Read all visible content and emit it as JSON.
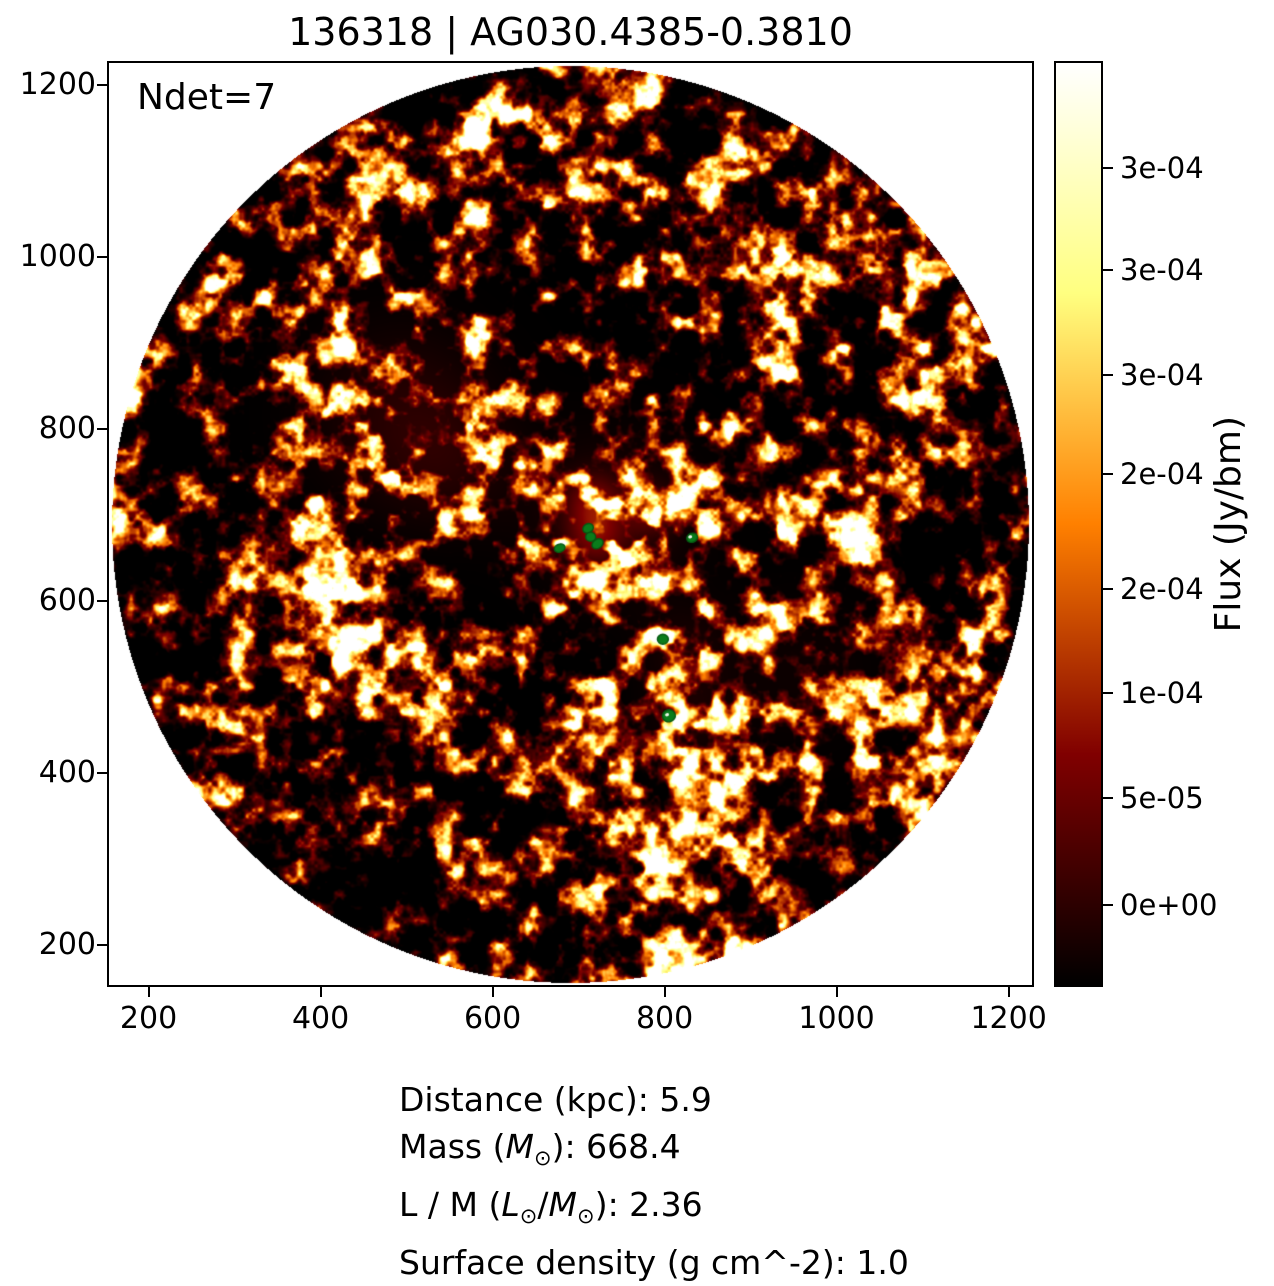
{
  "title": "136318 | AG030.4385-0.3810",
  "annotation": {
    "text": "Ndet=7"
  },
  "colors": {
    "background": "#ffffff",
    "spine": "#000000",
    "marker_green": "#0a7c1b",
    "marker_edge": "#065812",
    "text": "#000000"
  },
  "colorbar": {
    "label": "Flux (Jy/bm)",
    "tick_labels": [
      "3e-04",
      "3e-04",
      "3e-04",
      "2e-04",
      "2e-04",
      "1e-04",
      "5e-05",
      "0e+00"
    ],
    "tick_fractions_from_top": [
      0.1135,
      0.2249,
      0.3384,
      0.4454,
      0.5708,
      0.6832,
      0.7968,
      0.9135
    ],
    "colormap": "afmhot",
    "gradient_stops_top_to_bottom": [
      "#ffffff",
      "#ffffbf",
      "#ffff80",
      "#ffbf40",
      "#ff8000",
      "#bf4000",
      "#800000",
      "#400000",
      "#000000"
    ]
  },
  "chart_data": {
    "type": "image",
    "title": "136318 | AG030.4385-0.3810",
    "xlabel": "",
    "ylabel": "",
    "xlim": [
      154,
      1226
    ],
    "ylim": [
      154,
      1226
    ],
    "xticks": [
      200,
      400,
      600,
      800,
      1000,
      1200
    ],
    "yticks": [
      200,
      400,
      600,
      800,
      1000,
      1200
    ],
    "grid": false,
    "annotation": "Ndet=7",
    "colorbar_label": "Flux (Jy/bm)",
    "colorbar_tick_labels": [
      "3e-04",
      "3e-04",
      "3e-04",
      "2e-04",
      "2e-04",
      "1e-04",
      "5e-05",
      "0e+00"
    ],
    "fov_circle": {
      "x": 690,
      "y": 690,
      "r": 533
    },
    "detections": [
      {
        "x": 678,
        "y": 662,
        "rx": 5.5,
        "ry": 4.0,
        "rot": -20,
        "hole": false
      },
      {
        "x": 711,
        "y": 685,
        "rx": 5.5,
        "ry": 4.5,
        "rot": -30,
        "hole": false
      },
      {
        "x": 714,
        "y": 675,
        "rx": 5.0,
        "ry": 4.5,
        "rot": 0,
        "hole": false
      },
      {
        "x": 722,
        "y": 667,
        "rx": 6.0,
        "ry": 4.5,
        "rot": -35,
        "hole": false
      },
      {
        "x": 832,
        "y": 674,
        "rx": 5.5,
        "ry": 4.5,
        "rot": -20,
        "hole": true
      },
      {
        "x": 798,
        "y": 556,
        "rx": 5.5,
        "ry": 5.0,
        "rot": 0,
        "hole": false
      },
      {
        "x": 805,
        "y": 467,
        "rx": 6.5,
        "ry": 6.0,
        "rot": -15,
        "hole": true
      }
    ],
    "bright_regions": [
      {
        "x": 716,
        "y": 718,
        "sigma": 21,
        "amp": 0.5
      },
      {
        "x": 720,
        "y": 678,
        "sigma": 23,
        "amp": 0.55
      },
      {
        "x": 783,
        "y": 705,
        "sigma": 19,
        "amp": 0.42
      },
      {
        "x": 739,
        "y": 699,
        "sigma": 64,
        "amp": 0.18
      },
      {
        "x": 492,
        "y": 817,
        "sigma": 70,
        "amp": 0.2
      },
      {
        "x": 553,
        "y": 760,
        "sigma": 52,
        "amp": 0.13
      },
      {
        "x": 824,
        "y": 544,
        "sigma": 37,
        "amp": 0.12
      },
      {
        "x": 830,
        "y": 462,
        "sigma": 37,
        "amp": 0.12
      },
      {
        "x": 958,
        "y": 520,
        "sigma": 64,
        "amp": 0.07
      }
    ]
  },
  "info": {
    "lines": [
      [
        {
          "t": "Distance (kpc): 5.9"
        }
      ],
      [
        {
          "t": "Mass ("
        },
        {
          "t": "M",
          "i": true
        },
        {
          "t": "⊙",
          "sub": true
        },
        {
          "t": "): 668.4"
        }
      ],
      [
        {
          "t": "L / M ("
        },
        {
          "t": "L",
          "i": true
        },
        {
          "t": "⊙",
          "sub": true
        },
        {
          "t": "/"
        },
        {
          "t": "M",
          "i": true
        },
        {
          "t": "⊙",
          "sub": true
        },
        {
          "t": "): 2.36"
        }
      ],
      [
        {
          "t": "Surface density (g cm^-2): 1.0"
        }
      ]
    ]
  }
}
